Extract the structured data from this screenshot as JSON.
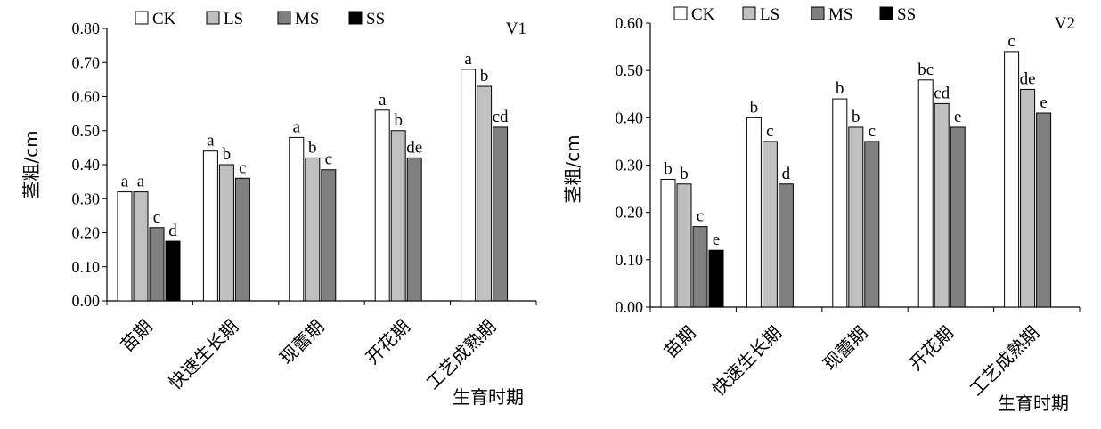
{
  "chart_data": [
    {
      "type": "bar",
      "panel_label": "V1",
      "categories": [
        "苗期",
        "快速生长期",
        "现蕾期",
        "开花期",
        "工艺成熟期"
      ],
      "series": [
        {
          "name": "CK",
          "color": "#ffffff",
          "values": [
            0.32,
            0.44,
            0.48,
            0.56,
            0.68
          ]
        },
        {
          "name": "LS",
          "color": "#c0c0c0",
          "values": [
            0.32,
            0.4,
            0.42,
            0.5,
            0.63
          ]
        },
        {
          "name": "MS",
          "color": "#808080",
          "values": [
            0.215,
            0.36,
            0.385,
            0.42,
            0.51
          ]
        },
        {
          "name": "SS",
          "color": "#000000",
          "values": [
            0.175,
            null,
            null,
            null,
            null
          ]
        }
      ],
      "significance_labels": [
        [
          "a",
          "a",
          "c",
          "d"
        ],
        [
          "a",
          "b",
          "c"
        ],
        [
          "a",
          "b",
          "c"
        ],
        [
          "a",
          "b",
          "de"
        ],
        [
          "a",
          "b",
          "cd"
        ]
      ],
      "ylabel": "茎粗/cm",
      "xlabel": "生育时期",
      "ylim": [
        0,
        0.8
      ],
      "yticks": [
        "0.00",
        "0.10",
        "0.20",
        "0.30",
        "0.40",
        "0.50",
        "0.60",
        "0.70",
        "0.80"
      ],
      "legend_position": "top",
      "grid": false
    },
    {
      "type": "bar",
      "panel_label": "V2",
      "categories": [
        "苗期",
        "快速生长期",
        "现蕾期",
        "开花期",
        "工艺成熟期"
      ],
      "series": [
        {
          "name": "CK",
          "color": "#ffffff",
          "values": [
            0.27,
            0.4,
            0.44,
            0.48,
            0.54
          ]
        },
        {
          "name": "LS",
          "color": "#c0c0c0",
          "values": [
            0.26,
            0.35,
            0.38,
            0.43,
            0.46
          ]
        },
        {
          "name": "MS",
          "color": "#808080",
          "values": [
            0.17,
            0.26,
            0.35,
            0.38,
            0.41
          ]
        },
        {
          "name": "SS",
          "color": "#000000",
          "values": [
            0.12,
            null,
            null,
            null,
            null
          ]
        }
      ],
      "significance_labels": [
        [
          "b",
          "b",
          "c",
          "e"
        ],
        [
          "b",
          "c",
          "d"
        ],
        [
          "b",
          "b",
          "c"
        ],
        [
          "bc",
          "cd",
          "e"
        ],
        [
          "c",
          "de",
          "e"
        ]
      ],
      "ylabel": "茎粗/cm",
      "xlabel": "生育时期",
      "ylim": [
        0,
        0.6
      ],
      "yticks": [
        "0.00",
        "0.10",
        "0.20",
        "0.30",
        "0.40",
        "0.50",
        "0.60"
      ],
      "legend_position": "top",
      "grid": false
    }
  ]
}
